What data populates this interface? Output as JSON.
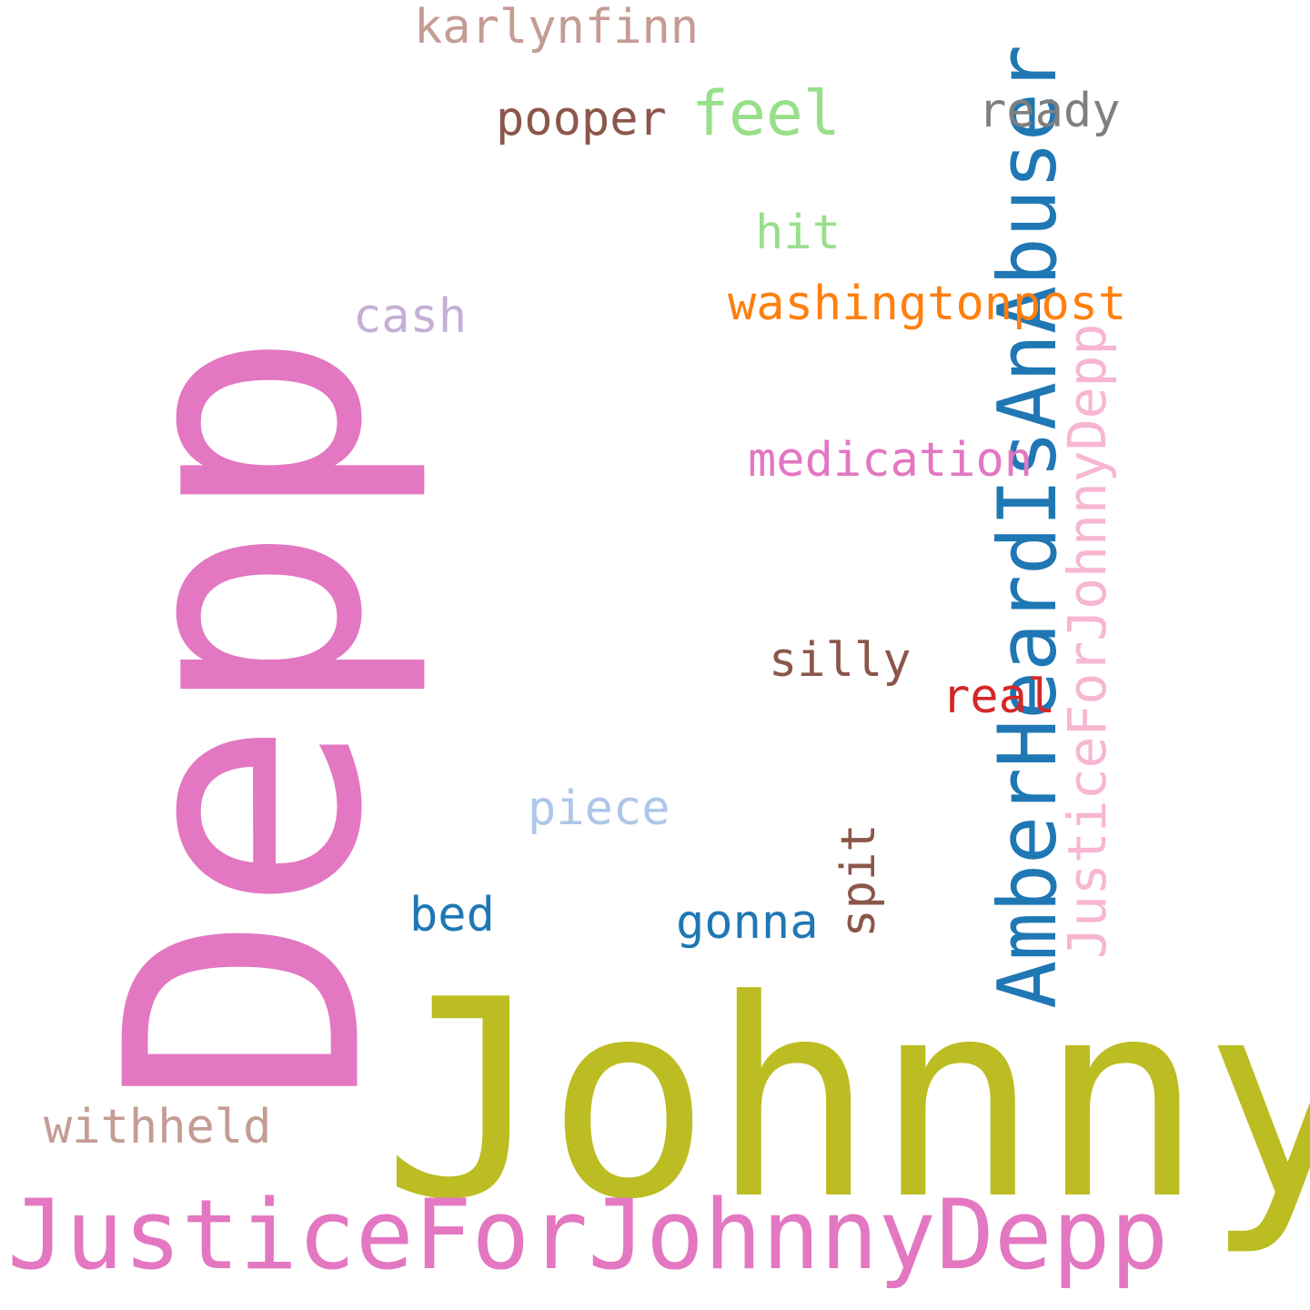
{
  "wordcloud": {
    "background": "#ffffff",
    "words": {
      "depp": {
        "text": "Depp",
        "color": "#e377c2",
        "orientation": "vertical"
      },
      "johnny": {
        "text": "Johnny",
        "color": "#bcbd22",
        "orientation": "horizontal"
      },
      "amber": {
        "text": "AmberHeardIsAnAbuser",
        "color": "#1f77b4",
        "orientation": "vertical"
      },
      "justice_big": {
        "text": "JusticeForJohnnyDepp",
        "color": "#e377c2",
        "orientation": "horizontal"
      },
      "justice_vertical": {
        "text": "JusticeForJohnnyDepp",
        "color": "#f7b6d2",
        "orientation": "vertical"
      },
      "karlynfinn": {
        "text": "karlynfinn",
        "color": "#c49c94",
        "orientation": "horizontal"
      },
      "pooper": {
        "text": "pooper",
        "color": "#8c564b",
        "orientation": "horizontal"
      },
      "feel": {
        "text": "feel",
        "color": "#98df8a",
        "orientation": "horizontal"
      },
      "ready": {
        "text": "ready",
        "color": "#7f7f7f",
        "orientation": "horizontal"
      },
      "hit": {
        "text": "hit",
        "color": "#98df8a",
        "orientation": "horizontal"
      },
      "washingtonpost": {
        "text": "washingtonpost",
        "color": "#ff7f0e",
        "orientation": "horizontal"
      },
      "cash": {
        "text": "cash",
        "color": "#c5b0d5",
        "orientation": "horizontal"
      },
      "medication": {
        "text": "medication",
        "color": "#e377c2",
        "orientation": "horizontal"
      },
      "silly": {
        "text": "silly",
        "color": "#8c564b",
        "orientation": "horizontal"
      },
      "real": {
        "text": "real",
        "color": "#d62728",
        "orientation": "horizontal"
      },
      "piece": {
        "text": "piece",
        "color": "#aec7e8",
        "orientation": "horizontal"
      },
      "spit": {
        "text": "spit",
        "color": "#8c564b",
        "orientation": "vertical"
      },
      "bed": {
        "text": "bed",
        "color": "#1f77b4",
        "orientation": "horizontal"
      },
      "gonna": {
        "text": "gonna",
        "color": "#1f77b4",
        "orientation": "horizontal"
      },
      "withheld": {
        "text": "withheld",
        "color": "#c49c94",
        "orientation": "horizontal"
      }
    }
  }
}
